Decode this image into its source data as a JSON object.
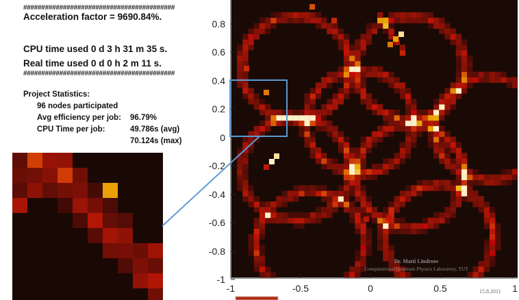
{
  "stats": {
    "hash_line": "##########################################",
    "acceleration": "Acceleration factor = 9690.84%.",
    "cpu_time": "CPU time used 0 d 3 h 31 m 35 s.",
    "real_time": "Real time used 0 d 0 h 2 m 11 s.",
    "project_title": "Project Statistics:",
    "nodes": "96 nodes participated",
    "avg_eff_label": "Avg efficiency per job:",
    "avg_eff_value": "96.79%",
    "cpu_per_job_label": "CPU Time per job:",
    "cpu_avg_value": "49.786s (avg)",
    "cpu_max_value": "70.124s (max)"
  },
  "plot": {
    "y_ticks": [
      "0.8",
      "0.6",
      "0.4",
      "0.2",
      "0",
      "-0.2",
      "-0.4",
      "-0.6",
      "-0.8",
      "-1"
    ],
    "x_ticks": [
      "-1",
      "-0.5",
      "0",
      "0.5",
      "1"
    ],
    "credit_name": "Dr. Matti Lindroos",
    "credit_lab": "Computational Quantum Physics Laboratory, TUT",
    "date": "15.8.2011",
    "colors": {
      "background": "#1a0a05",
      "highlight_box": "#5b9bd5"
    }
  }
}
